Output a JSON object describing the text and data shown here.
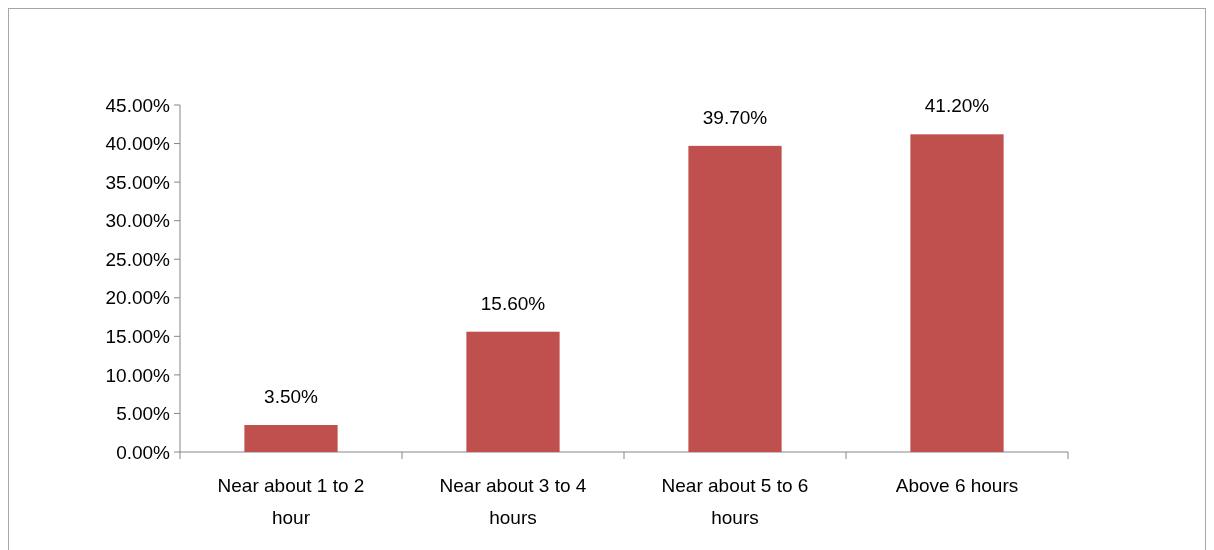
{
  "chart_data": {
    "type": "bar",
    "categories": [
      "Near about 1 to 2 hour",
      "Near about 3 to 4 hours",
      "Near about 5 to 6 hours",
      "Above 6 hours"
    ],
    "values": [
      3.5,
      15.6,
      39.7,
      41.2
    ],
    "value_labels": [
      "3.50%",
      "15.60%",
      "39.70%",
      "41.20%"
    ],
    "color": "#c0504d",
    "ylim": [
      0,
      45
    ],
    "yticks": [
      {
        "value": 0,
        "label": "0.00%"
      },
      {
        "value": 5,
        "label": "5.00%"
      },
      {
        "value": 10,
        "label": "10.00%"
      },
      {
        "value": 15,
        "label": "15.00%"
      },
      {
        "value": 20,
        "label": "20.00%"
      },
      {
        "value": 25,
        "label": "25.00%"
      },
      {
        "value": 30,
        "label": "30.00%"
      },
      {
        "value": 35,
        "label": "35.00%"
      },
      {
        "value": 40,
        "label": "40.00%"
      },
      {
        "value": 45,
        "label": "45.00%"
      }
    ],
    "grid": false
  }
}
